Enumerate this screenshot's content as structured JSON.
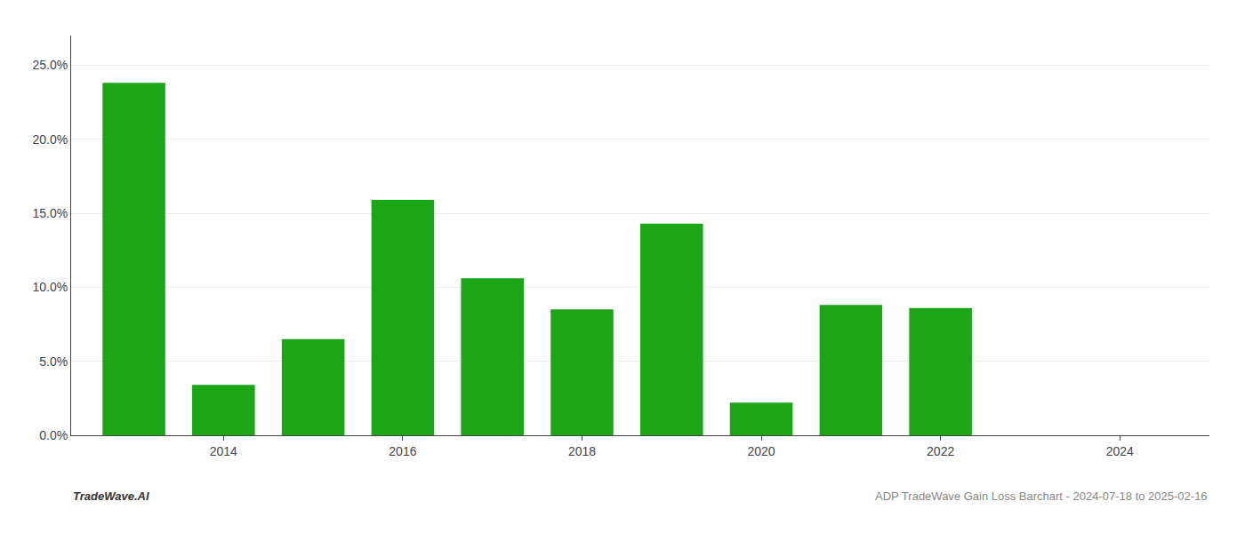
{
  "chart_data": {
    "type": "bar",
    "x": [
      2013,
      2014,
      2015,
      2016,
      2017,
      2018,
      2019,
      2020,
      2021,
      2022,
      2023
    ],
    "values": [
      0.238,
      0.034,
      0.065,
      0.159,
      0.106,
      0.085,
      0.143,
      0.022,
      0.088,
      0.086,
      0.0
    ],
    "color": "#1da518",
    "xlim": [
      2012.3,
      2025.0
    ],
    "xticks": [
      2014,
      2016,
      2018,
      2020,
      2022,
      2024
    ],
    "ylim": [
      0.0,
      0.27
    ],
    "yticks": [
      {
        "value": 0.0,
        "label": "0.0%"
      },
      {
        "value": 0.05,
        "label": "5.0%"
      },
      {
        "value": 0.1,
        "label": "10.0%"
      },
      {
        "value": 0.15,
        "label": "15.0%"
      },
      {
        "value": 0.2,
        "label": "20.0%"
      },
      {
        "value": 0.25,
        "label": "25.0%"
      }
    ],
    "grid": true,
    "annotations": [
      "TradeWave.AI",
      "ADP TradeWave Gain Loss Barchart - 2024-07-18 to 2025-02-16"
    ]
  }
}
